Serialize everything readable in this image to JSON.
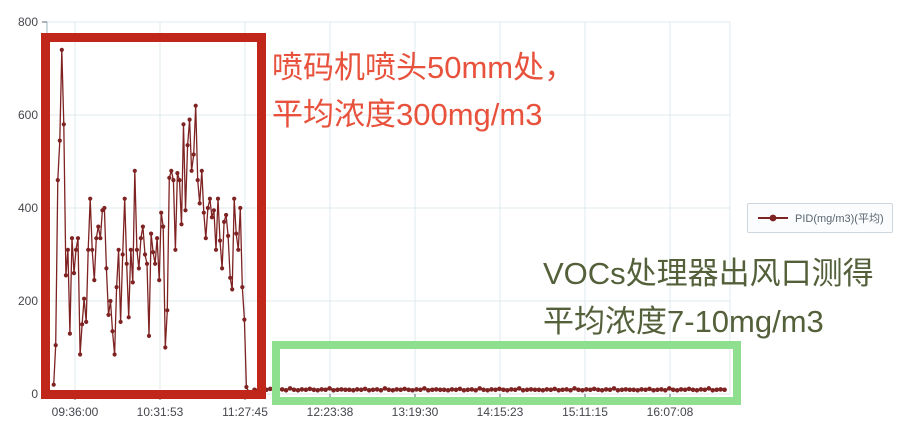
{
  "page": {
    "background": "#ffffff"
  },
  "legend": {
    "label": "PID(mg/m3)(平均)",
    "marker_color": "#7e2222",
    "border_color": "#ccd6dc",
    "background": "#fafcfd",
    "text_color": "#5c6670"
  },
  "annotations": {
    "printhead_note": {
      "line1": "喷码机喷头50mm处，",
      "line2": "平均浓度300mg/m3",
      "color": "#e8513c"
    },
    "outlet_note": {
      "line1": "VOCs处理器出风口测得",
      "line2": "平均浓度7-10mg/m3",
      "color": "#53603a"
    },
    "printhead_box": {
      "color": "#c1261b"
    },
    "outlet_box": {
      "color": "#8ee08f"
    }
  },
  "chart_data": {
    "type": "line",
    "title": "",
    "xlabel": "",
    "ylabel": "",
    "ylim": [
      0,
      800
    ],
    "y_ticks": [
      0,
      200,
      400,
      600,
      800
    ],
    "x_ticks": [
      "09:36:00",
      "10:31:53",
      "11:27:45",
      "12:23:38",
      "13:19:30",
      "14:15:23",
      "15:11:15",
      "16:07:08"
    ],
    "grid": true,
    "legend_position": "right",
    "colors": {
      "series": "#7e2222",
      "grid": "#dfe9ee",
      "axis": "#9ab4bd",
      "tick": "#5a6a72",
      "label": "#45474d"
    },
    "series": [
      {
        "name": "PID(mg/m3)(平均)",
        "color": "#7e2222",
        "segments": [
          {
            "label": "喷码机喷头50mm处 平均浓度300mg/m3",
            "start": "09:22:00",
            "end": "11:30:00",
            "values": [
              20,
              105,
              460,
              545,
              740,
              580,
              255,
              310,
              130,
              335,
              260,
              310,
              335,
              85,
              150,
              205,
              155,
              310,
              420,
              310,
              245,
              335,
              360,
              335,
              395,
              400,
              270,
              170,
              200,
              135,
              85,
              230,
              310,
              155,
              300,
              420,
              280,
              165,
              310,
              240,
              480,
              310,
              270,
              335,
              360,
              300,
              280,
              125,
              345,
              305,
              280,
              335,
              245,
              390,
              360,
              100,
              180,
              465,
              480,
              460,
              310,
              475,
              460,
              365,
              580,
              395,
              535,
              590,
              480,
              515,
              620,
              460,
              410,
              480,
              390,
              335,
              400,
              420,
              380,
              395,
              310,
              420,
              330,
              270,
              370,
              385,
              340,
              250,
              225,
              420,
              345,
              310,
              400,
              230,
              160,
              15,
              5
            ]
          },
          {
            "label": "VOCs处理器出风口 平均浓度7-10mg/m3",
            "start": "11:34:00",
            "end": "16:43:00",
            "values": [
              9,
              8,
              10,
              9,
              11,
              8,
              9,
              10,
              8,
              12,
              9,
              8,
              10,
              9,
              11,
              9,
              8,
              10,
              9,
              12,
              8,
              9,
              10,
              9,
              9,
              8,
              10,
              9,
              11,
              8,
              9,
              10,
              8,
              12,
              9,
              8,
              10,
              9,
              11,
              9,
              8,
              10,
              9,
              12,
              8,
              9,
              10,
              9,
              9,
              8,
              10,
              9,
              11,
              8,
              9,
              10,
              8,
              12,
              9,
              8,
              10,
              9,
              11,
              9,
              8,
              10,
              9,
              12,
              8,
              9,
              10,
              9,
              9,
              8,
              10,
              9,
              11,
              8,
              9,
              10,
              8,
              12,
              9,
              8,
              10,
              9,
              11,
              9,
              8,
              10,
              9,
              12,
              8,
              9,
              10,
              9,
              9,
              8,
              10,
              9,
              11,
              8,
              9,
              10,
              8,
              12,
              9,
              8,
              10,
              9,
              11,
              9,
              8,
              10,
              9,
              12,
              8,
              9,
              10,
              9
            ]
          }
        ]
      }
    ]
  }
}
